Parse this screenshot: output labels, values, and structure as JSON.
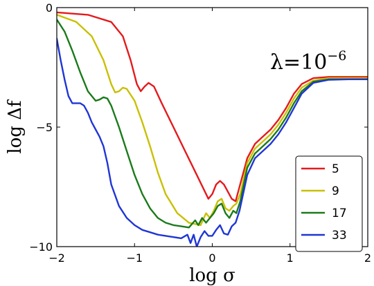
{
  "chart_data": {
    "type": "line",
    "title": "",
    "xlabel": "log σ",
    "ylabel": "log Δf",
    "xlim": [
      -2,
      2
    ],
    "ylim": [
      -10,
      0
    ],
    "xticks": [
      -2,
      -1,
      0,
      1,
      2
    ],
    "yticks": [
      0,
      -5,
      -10
    ],
    "xtick_labels": [
      "−2",
      "−1",
      "0",
      "1",
      "2"
    ],
    "ytick_labels": [
      "0",
      "−5",
      "−10"
    ],
    "grid": false,
    "legend_position": "lower-right",
    "annotation": {
      "base": "λ=10",
      "exponent": "−6"
    },
    "series": [
      {
        "name": "5",
        "color": "#e41a1c",
        "x": [
          -2.0,
          -1.6,
          -1.3,
          -1.15,
          -1.05,
          -0.97,
          -0.92,
          -0.87,
          -0.82,
          -0.75,
          -0.65,
          -0.5,
          -0.35,
          -0.2,
          -0.05,
          0.0,
          0.05,
          0.1,
          0.15,
          0.2,
          0.25,
          0.3,
          0.35,
          0.45,
          0.55,
          0.65,
          0.75,
          0.85,
          0.95,
          1.05,
          1.15,
          1.3,
          1.5,
          1.75,
          2.0
        ],
        "y": [
          -0.2,
          -0.3,
          -0.6,
          -1.2,
          -2.2,
          -3.2,
          -3.5,
          -3.3,
          -3.15,
          -3.3,
          -4.0,
          -5.0,
          -6.0,
          -7.0,
          -8.0,
          -7.8,
          -7.4,
          -7.25,
          -7.4,
          -7.7,
          -8.0,
          -8.1,
          -7.5,
          -6.3,
          -5.7,
          -5.4,
          -5.1,
          -4.7,
          -4.2,
          -3.6,
          -3.2,
          -2.95,
          -2.9,
          -2.9,
          -2.9
        ]
      },
      {
        "name": "9",
        "color": "#c8c000",
        "x": [
          -2.0,
          -1.75,
          -1.55,
          -1.4,
          -1.3,
          -1.25,
          -1.2,
          -1.15,
          -1.1,
          -1.0,
          -0.9,
          -0.8,
          -0.7,
          -0.6,
          -0.45,
          -0.3,
          -0.15,
          -0.08,
          -0.03,
          0.02,
          0.07,
          0.12,
          0.17,
          0.22,
          0.27,
          0.31,
          0.36,
          0.45,
          0.55,
          0.65,
          0.75,
          0.85,
          0.95,
          1.05,
          1.15,
          1.3,
          1.5,
          1.75,
          2.0
        ],
        "y": [
          -0.3,
          -0.6,
          -1.2,
          -2.2,
          -3.2,
          -3.55,
          -3.5,
          -3.35,
          -3.4,
          -3.9,
          -4.8,
          -5.8,
          -6.9,
          -7.8,
          -8.6,
          -9.0,
          -9.1,
          -8.6,
          -8.8,
          -8.5,
          -8.1,
          -8.0,
          -8.4,
          -8.5,
          -8.3,
          -8.2,
          -7.8,
          -6.5,
          -5.9,
          -5.6,
          -5.3,
          -4.9,
          -4.4,
          -3.8,
          -3.35,
          -3.05,
          -2.95,
          -2.95,
          -2.95
        ]
      },
      {
        "name": "17",
        "color": "#1a7a1a",
        "x": [
          -2.0,
          -1.9,
          -1.8,
          -1.7,
          -1.6,
          -1.5,
          -1.45,
          -1.4,
          -1.35,
          -1.3,
          -1.2,
          -1.1,
          -1.0,
          -0.9,
          -0.8,
          -0.7,
          -0.6,
          -0.5,
          -0.4,
          -0.3,
          -0.22,
          -0.18,
          -0.13,
          -0.08,
          -0.03,
          0.02,
          0.07,
          0.12,
          0.17,
          0.22,
          0.27,
          0.31,
          0.36,
          0.45,
          0.55,
          0.65,
          0.75,
          0.85,
          0.95,
          1.05,
          1.15,
          1.3,
          1.5,
          1.75,
          2.0
        ],
        "y": [
          -0.5,
          -1.0,
          -1.8,
          -2.7,
          -3.5,
          -3.9,
          -3.85,
          -3.75,
          -3.8,
          -4.1,
          -5.0,
          -6.0,
          -7.0,
          -7.8,
          -8.4,
          -8.8,
          -9.0,
          -9.1,
          -9.15,
          -9.2,
          -8.9,
          -9.1,
          -8.8,
          -9.0,
          -8.8,
          -8.6,
          -8.3,
          -8.2,
          -8.6,
          -8.8,
          -8.5,
          -8.6,
          -8.1,
          -6.7,
          -6.1,
          -5.8,
          -5.5,
          -5.1,
          -4.6,
          -4.0,
          -3.5,
          -3.1,
          -3.0,
          -3.0,
          -3.0
        ]
      },
      {
        "name": "33",
        "color": "#1f35d6",
        "x": [
          -2.0,
          -1.95,
          -1.9,
          -1.85,
          -1.8,
          -1.75,
          -1.7,
          -1.65,
          -1.6,
          -1.55,
          -1.5,
          -1.45,
          -1.4,
          -1.35,
          -1.3,
          -1.2,
          -1.1,
          -1.0,
          -0.9,
          -0.8,
          -0.7,
          -0.6,
          -0.5,
          -0.4,
          -0.32,
          -0.28,
          -0.24,
          -0.2,
          -0.15,
          -0.1,
          -0.05,
          0.0,
          0.05,
          0.1,
          0.15,
          0.2,
          0.25,
          0.3,
          0.35,
          0.45,
          0.55,
          0.65,
          0.75,
          0.85,
          0.95,
          1.05,
          1.15,
          1.3,
          1.5,
          1.75,
          2.0
        ],
        "y": [
          -1.3,
          -2.2,
          -3.0,
          -3.7,
          -4.0,
          -4.0,
          -4.0,
          -4.1,
          -4.4,
          -4.8,
          -5.1,
          -5.4,
          -5.8,
          -6.5,
          -7.4,
          -8.3,
          -8.8,
          -9.1,
          -9.3,
          -9.4,
          -9.5,
          -9.55,
          -9.6,
          -9.65,
          -9.5,
          -9.85,
          -9.5,
          -10.0,
          -9.6,
          -9.35,
          -9.55,
          -9.55,
          -9.3,
          -9.1,
          -9.45,
          -9.5,
          -9.15,
          -9.0,
          -8.5,
          -7.0,
          -6.3,
          -6.0,
          -5.7,
          -5.3,
          -4.8,
          -4.2,
          -3.6,
          -3.15,
          -3.02,
          -3.0,
          -3.0
        ]
      }
    ]
  }
}
